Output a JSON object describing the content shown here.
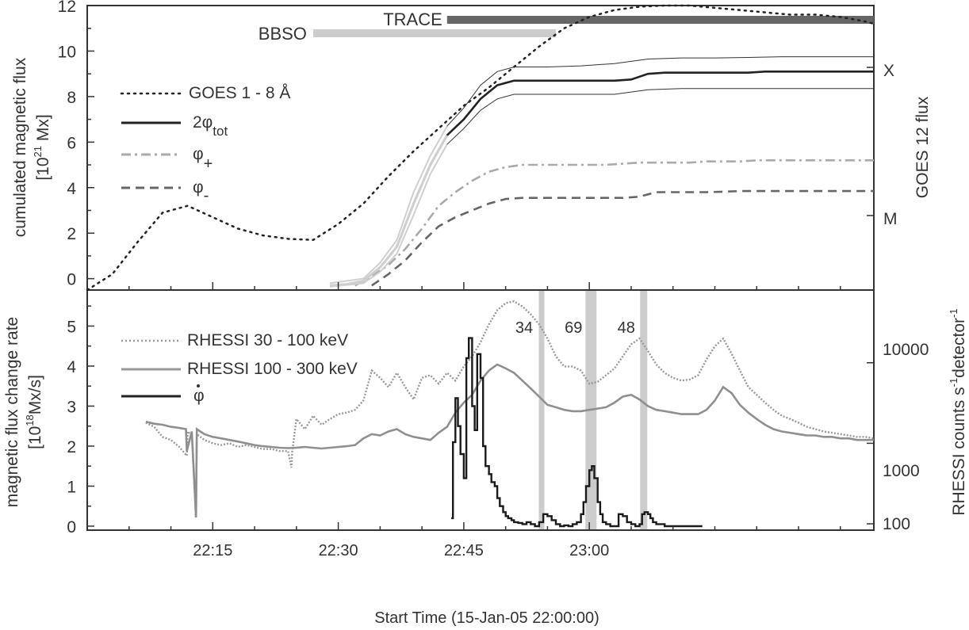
{
  "chart_data": [
    {
      "type": "line",
      "panel": "top",
      "ylabel_line1": "cumulated magnetic flux",
      "ylabel_unit_open": "[10",
      "ylabel_unit_exp": "21",
      "ylabel_unit_close": " Mx]",
      "right_label": "GOES 12 flux",
      "right_ticks": [
        "X",
        "M"
      ],
      "ylim": [
        -0.5,
        12
      ],
      "yticks": [
        0,
        2,
        4,
        6,
        8,
        10,
        12
      ],
      "xlim": [
        0,
        94
      ],
      "bars": [
        {
          "label": "TRACE",
          "start": 43,
          "end": 94,
          "color": "#666666"
        },
        {
          "label": "BBSO",
          "start": 27,
          "end": 56,
          "color": "#cccccc"
        }
      ],
      "legend": [
        {
          "label": "GOES 1 - 8 Å",
          "style": "dotted"
        },
        {
          "label": "2φ",
          "sub": "tot",
          "style": "solid"
        },
        {
          "label": "φ",
          "sub": "+",
          "style": "dashdot"
        },
        {
          "label": "φ",
          "sub": "-",
          "style": "dashed"
        }
      ],
      "series": [
        {
          "name": "GOES 1 - 8 Å",
          "x": [
            0,
            3,
            6,
            9,
            12,
            15,
            18,
            21,
            24,
            27,
            30,
            33,
            36,
            39,
            42,
            45,
            48,
            51,
            54,
            57,
            60,
            63,
            66,
            69,
            72,
            75,
            78,
            81,
            84,
            87,
            90,
            93,
            94
          ],
          "y": [
            -0.5,
            0.2,
            1.6,
            2.9,
            3.2,
            2.7,
            2.2,
            1.9,
            1.75,
            1.7,
            2.4,
            3.3,
            4.5,
            5.6,
            6.6,
            7.6,
            8.4,
            9.3,
            10.2,
            11.0,
            11.5,
            11.8,
            11.95,
            12.0,
            12.0,
            11.9,
            11.8,
            11.7,
            11.6,
            11.6,
            11.5,
            11.3,
            11.2
          ]
        },
        {
          "name": "2φ_tot",
          "x": [
            29,
            31,
            33,
            35,
            37,
            39,
            41,
            43,
            45,
            47,
            49,
            51,
            53,
            55,
            57,
            59,
            61,
            63,
            65,
            67,
            69,
            71,
            73,
            75,
            77,
            79,
            81,
            83,
            85,
            87,
            89,
            91,
            93,
            94
          ],
          "y": [
            -0.3,
            -0.25,
            -0.1,
            0.5,
            1.4,
            3.3,
            5.0,
            6.3,
            7.0,
            7.9,
            8.5,
            8.7,
            8.7,
            8.7,
            8.7,
            8.7,
            8.7,
            8.7,
            8.75,
            9.0,
            9.05,
            9.05,
            9.05,
            9.05,
            9.05,
            9.05,
            9.1,
            9.1,
            9.1,
            9.1,
            9.1,
            9.1,
            9.1,
            9.1
          ]
        },
        {
          "name": "2φ_tot upper",
          "x": [
            29,
            33,
            35,
            37,
            39,
            41,
            43,
            45,
            47,
            49,
            51,
            55,
            59,
            63,
            67,
            71,
            75,
            79,
            83,
            87,
            91,
            94
          ],
          "y": [
            -0.2,
            0.0,
            0.7,
            1.7,
            3.8,
            5.4,
            6.7,
            7.5,
            8.5,
            9.1,
            9.3,
            9.3,
            9.35,
            9.45,
            9.65,
            9.7,
            9.7,
            9.72,
            9.75,
            9.75,
            9.75,
            9.75
          ]
        },
        {
          "name": "2φ_tot lower",
          "x": [
            29,
            33,
            35,
            37,
            39,
            41,
            43,
            45,
            47,
            49,
            51,
            55,
            59,
            63,
            67,
            71,
            75,
            79,
            83,
            87,
            91,
            94
          ],
          "y": [
            -0.35,
            -0.2,
            0.3,
            1.1,
            2.8,
            4.6,
            5.9,
            6.6,
            7.4,
            7.9,
            8.1,
            8.1,
            8.1,
            8.1,
            8.3,
            8.35,
            8.35,
            8.35,
            8.35,
            8.35,
            8.35,
            8.35
          ]
        },
        {
          "name": "φ+",
          "x": [
            32,
            34,
            36,
            38,
            40,
            42,
            44,
            46,
            48,
            50,
            52,
            54,
            56,
            58,
            60,
            62,
            64,
            66,
            68,
            70,
            72,
            74,
            76,
            78,
            80,
            82,
            84,
            86,
            88,
            90,
            92,
            94
          ],
          "y": [
            -0.3,
            0.1,
            0.6,
            1.3,
            2.2,
            3.2,
            3.8,
            4.3,
            4.7,
            4.9,
            5.0,
            5.0,
            5.0,
            5.0,
            5.0,
            5.0,
            5.05,
            5.1,
            5.1,
            5.1,
            5.1,
            5.15,
            5.15,
            5.15,
            5.2,
            5.2,
            5.2,
            5.2,
            5.2,
            5.2,
            5.2,
            5.2
          ]
        },
        {
          "name": "φ-",
          "x": [
            34,
            36,
            38,
            40,
            42,
            44,
            46,
            48,
            50,
            52,
            54,
            56,
            58,
            60,
            62,
            64,
            66,
            68,
            70,
            72,
            74,
            76,
            78,
            80,
            82,
            84,
            86,
            88,
            90,
            92,
            94
          ],
          "y": [
            -0.3,
            0.2,
            0.8,
            1.6,
            2.3,
            2.7,
            3.0,
            3.3,
            3.5,
            3.55,
            3.55,
            3.55,
            3.55,
            3.55,
            3.55,
            3.55,
            3.6,
            3.8,
            3.8,
            3.8,
            3.8,
            3.82,
            3.85,
            3.85,
            3.85,
            3.85,
            3.85,
            3.85,
            3.85,
            3.85,
            3.85
          ]
        }
      ]
    },
    {
      "type": "line",
      "panel": "bottom",
      "ylabel_line1": "magnetic flux change rate",
      "ylabel_unit_open": "[10",
      "ylabel_unit_exp": "18",
      "ylabel_unit_close": "Mx/s]",
      "right_label_text": "RHESSI counts  s",
      "right_label_exp1": "-1",
      "right_label_mid": "detector",
      "right_label_exp2": "-1",
      "right_ticks": [
        "10000",
        "1000",
        "100"
      ],
      "right_scale": "log",
      "right_lim": [
        100,
        80000
      ],
      "ylim": [
        -0.1,
        5.9
      ],
      "yticks": [
        0,
        1,
        2,
        3,
        4,
        5
      ],
      "xlim": [
        0,
        94
      ],
      "xlabel": "Start Time (15-Jan-05 22:00:00)",
      "xticks": [
        {
          "t": 15,
          "label": "22:15"
        },
        {
          "t": 30,
          "label": "22:30"
        },
        {
          "t": 45,
          "label": "22:45"
        },
        {
          "t": 60,
          "label": "23:00"
        }
      ],
      "minor_xticks": [
        5,
        10,
        20,
        25,
        35,
        40,
        50,
        55,
        65,
        70,
        75,
        80,
        85,
        90
      ],
      "highlights": [
        {
          "t": 54.3,
          "label": "34"
        },
        {
          "t": 60.2,
          "label": "69"
        },
        {
          "t": 66.5,
          "label": "48"
        }
      ],
      "legend": [
        {
          "label": "RHESSI 30 - 100 keV",
          "style": "dotted"
        },
        {
          "label": "RHESSI 100 - 300 keV",
          "style": "solid-gray"
        },
        {
          "label": "φ",
          "dot": true,
          "style": "solid"
        }
      ],
      "series": [
        {
          "name": "RHESSI 30 - 100 keV",
          "x": [
            7,
            8,
            9,
            10,
            11,
            11.9,
            12,
            12.5,
            13,
            13.1,
            14,
            15,
            16,
            17,
            18,
            19,
            20,
            21,
            22,
            23,
            24,
            24.4,
            24.5,
            25,
            26,
            27,
            28,
            29,
            30,
            31,
            32,
            33,
            34,
            35,
            36,
            37,
            38,
            39,
            40,
            41,
            42,
            43,
            44,
            45,
            46,
            47,
            48,
            49,
            50,
            51,
            52,
            53,
            54,
            55,
            56,
            57,
            58,
            59,
            60,
            61,
            62,
            63,
            64,
            65,
            66,
            67,
            68,
            69,
            70,
            71,
            72,
            73,
            74,
            75,
            76,
            77,
            78,
            79,
            80,
            81,
            82,
            83,
            84,
            85,
            86,
            87,
            88,
            89,
            90,
            91,
            92,
            93,
            94
          ],
          "y": [
            1800,
            1600,
            1200,
            1100,
            900,
            700,
            1400,
            1250,
            120,
            1300,
            1100,
            1000,
            950,
            1000,
            900,
            950,
            900,
            850,
            850,
            800,
            800,
            500,
            800,
            2000,
            1500,
            2200,
            1700,
            2000,
            2300,
            2400,
            2600,
            3400,
            8000,
            6500,
            5000,
            7500,
            5000,
            3500,
            6500,
            7000,
            5500,
            7500,
            6000,
            9000,
            12000,
            18000,
            30000,
            45000,
            55000,
            58000,
            50000,
            40000,
            30000,
            20000,
            12000,
            9000,
            9000,
            8000,
            5500,
            5800,
            7000,
            8500,
            12000,
            17000,
            20000,
            14000,
            9500,
            7500,
            6500,
            6000,
            6200,
            7000,
            11000,
            16000,
            20000,
            13000,
            8000,
            5000,
            4000,
            3200,
            2600,
            2200,
            2000,
            1800,
            1600,
            1500,
            1400,
            1350,
            1300,
            1250,
            1200,
            1200,
            1150
          ]
        },
        {
          "name": "RHESSI 100 - 300 keV",
          "x": [
            7,
            8,
            9,
            10,
            11,
            11.8,
            11.9,
            12.5,
            13,
            13.1,
            14,
            15,
            16,
            17,
            18,
            19,
            20,
            21,
            22,
            23,
            24,
            25,
            26,
            27,
            28,
            29,
            30,
            31,
            32,
            33,
            34,
            35,
            36,
            37,
            38,
            39,
            40,
            41,
            42,
            43,
            44,
            45,
            46,
            47,
            48,
            49,
            50,
            51,
            52,
            53,
            54,
            55,
            56,
            57,
            58,
            59,
            60,
            61,
            62,
            63,
            64,
            65,
            66,
            67,
            68,
            69,
            70,
            71,
            72,
            73,
            74,
            75,
            76,
            77,
            78,
            79,
            80,
            81,
            82,
            83,
            84,
            85,
            86,
            87,
            88,
            89,
            90,
            91,
            92,
            93,
            94
          ],
          "y": [
            1850,
            1750,
            1700,
            1600,
            1550,
            1500,
            800,
            1400,
            120,
            1500,
            1300,
            1200,
            1150,
            1100,
            1050,
            1000,
            950,
            920,
            900,
            880,
            870,
            880,
            900,
            880,
            860,
            880,
            900,
            920,
            950,
            1150,
            1300,
            1250,
            1400,
            1500,
            1300,
            1200,
            1150,
            1100,
            1350,
            1600,
            2400,
            3200,
            4000,
            6000,
            8000,
            9500,
            8500,
            7500,
            6000,
            4800,
            3800,
            3000,
            2800,
            2600,
            2500,
            2500,
            2600,
            2700,
            2800,
            3200,
            3800,
            4000,
            3500,
            2900,
            2600,
            2500,
            2400,
            2300,
            2300,
            2300,
            2600,
            3400,
            5000,
            4200,
            3000,
            2400,
            2000,
            1700,
            1500,
            1400,
            1350,
            1300,
            1250,
            1250,
            1200,
            1200,
            1150,
            1150,
            1100,
            1100,
            1100
          ]
        },
        {
          "name": "φ-dot",
          "x": [
            43.5,
            43.7,
            44,
            44.3,
            44.6,
            45,
            45.3,
            45.6,
            46,
            46.3,
            46.6,
            47,
            47.3,
            47.6,
            48,
            48.3,
            48.7,
            49,
            49.3,
            49.7,
            50,
            50.3,
            50.7,
            51,
            51.5,
            52,
            52.5,
            53,
            53.5,
            54,
            54.5,
            55,
            55.5,
            56,
            56.5,
            57,
            57.5,
            58,
            58.5,
            59,
            59.3,
            59.6,
            60,
            60.3,
            60.6,
            61,
            61.3,
            61.6,
            62,
            62.5,
            63,
            63.5,
            64,
            64.5,
            65,
            65.5,
            66,
            66.3,
            66.6,
            67,
            67.3,
            67.6,
            68,
            68.5,
            69,
            69.5,
            70,
            70.5,
            71,
            71.5,
            72,
            72.5,
            73,
            73.5
          ],
          "y": [
            0.2,
            2.1,
            3.2,
            2.5,
            1.8,
            1.2,
            4.2,
            4.7,
            3.0,
            2.4,
            4.3,
            3.7,
            2.0,
            1.5,
            1.3,
            1.1,
            1.0,
            0.7,
            0.5,
            0.35,
            0.25,
            0.2,
            0.15,
            0.1,
            0.08,
            0.05,
            0.1,
            0.05,
            0.0,
            0.1,
            0.3,
            0.25,
            0.15,
            0.05,
            0.0,
            0.02,
            0.0,
            0.05,
            0.1,
            0.3,
            0.6,
            1.0,
            1.4,
            1.5,
            1.2,
            0.6,
            0.3,
            0.1,
            0.05,
            0.0,
            0.0,
            0.3,
            0.25,
            0.1,
            0.05,
            0.0,
            0.05,
            0.3,
            0.35,
            0.3,
            0.2,
            0.1,
            0.05,
            0.05,
            0.0,
            0.0,
            0.0,
            0.0,
            0.0,
            0.0,
            0.0,
            0.0,
            0.0,
            0.0
          ]
        }
      ]
    }
  ]
}
